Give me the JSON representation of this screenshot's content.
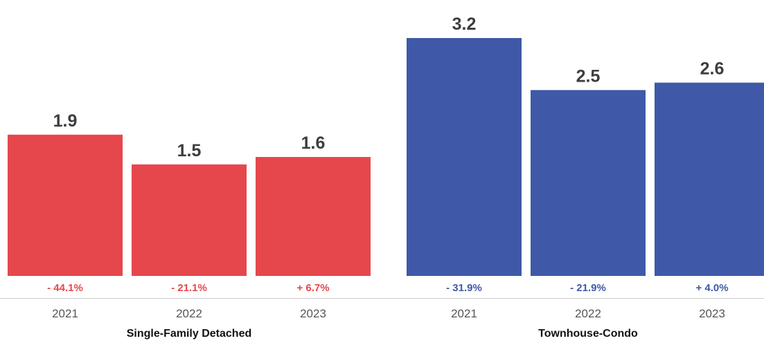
{
  "chart_data": {
    "type": "bar",
    "categories": [
      "2021",
      "2022",
      "2023"
    ],
    "groups": [
      {
        "name": "Single-Family Detached",
        "color": "#e6474c",
        "values": [
          1.9,
          1.5,
          1.6
        ],
        "value_labels": [
          "1.9",
          "1.5",
          "1.6"
        ],
        "changes": [
          "- 44.1%",
          "- 21.1%",
          "+ 6.7%"
        ]
      },
      {
        "name": "Townhouse-Condo",
        "color": "#3f59a8",
        "values": [
          3.2,
          2.5,
          2.6
        ],
        "value_labels": [
          "3.2",
          "2.5",
          "2.6"
        ],
        "changes": [
          "- 31.9%",
          "- 21.9%",
          "+ 4.0%"
        ]
      }
    ],
    "ylim": [
      0,
      3.6
    ],
    "grid": false,
    "legend": "none"
  }
}
